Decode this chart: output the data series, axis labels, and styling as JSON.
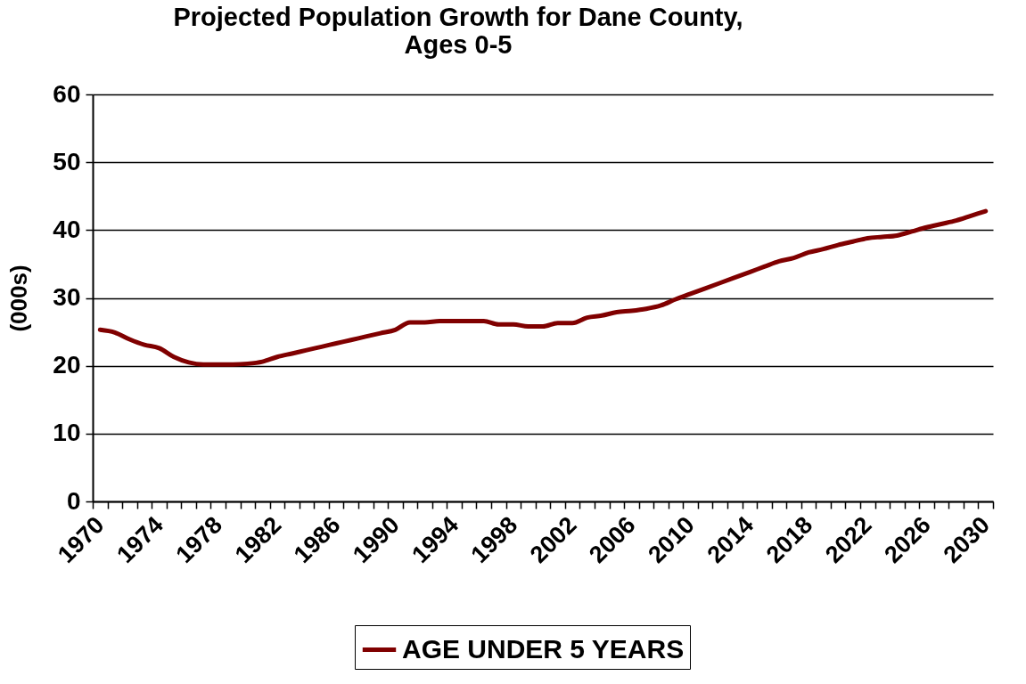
{
  "chart_data": {
    "type": "line",
    "title": "Projected Population Growth for Dane County,\nAges 0-5",
    "ylabel": "(000s)",
    "categories": [
      "1970",
      null,
      null,
      null,
      "1974",
      null,
      null,
      null,
      "1978",
      null,
      null,
      null,
      "1982",
      null,
      null,
      null,
      "1986",
      null,
      null,
      null,
      "1990",
      null,
      null,
      null,
      "1994",
      null,
      null,
      null,
      "1998",
      null,
      null,
      null,
      "2002",
      null,
      null,
      null,
      "2006",
      null,
      null,
      null,
      "2010",
      null,
      null,
      null,
      "2014",
      null,
      null,
      null,
      "2018",
      null,
      null,
      null,
      "2022",
      null,
      null,
      null,
      "2026",
      null,
      null,
      null,
      "2030"
    ],
    "series": [
      {
        "name": "AGE UNDER 5 YEARS",
        "color": "#800000",
        "values": [
          25.3,
          24.9,
          23.9,
          23.1,
          22.6,
          21.3,
          20.5,
          20.2,
          20.2,
          20.2,
          20.3,
          20.6,
          21.3,
          21.8,
          22.3,
          22.8,
          23.3,
          23.8,
          24.3,
          24.8,
          25.3,
          26.4,
          26.4,
          26.6,
          26.6,
          26.6,
          26.6,
          26.1,
          26.1,
          25.8,
          25.8,
          26.3,
          26.3,
          27.1,
          27.4,
          27.9,
          28.1,
          28.4,
          28.9,
          29.8,
          30.6,
          31.4,
          32.2,
          33.0,
          33.8,
          34.6,
          35.4,
          35.9,
          36.7,
          37.2,
          37.8,
          38.3,
          38.8,
          39.0,
          39.2,
          39.8,
          40.4,
          40.9,
          41.4,
          42.1,
          42.8
        ]
      }
    ],
    "ylim": [
      0,
      60
    ],
    "yticks": [
      0,
      10,
      20,
      30,
      40,
      50,
      60
    ],
    "grid": "y",
    "legend": "bottom",
    "marker": "none",
    "line_style": "solid"
  }
}
